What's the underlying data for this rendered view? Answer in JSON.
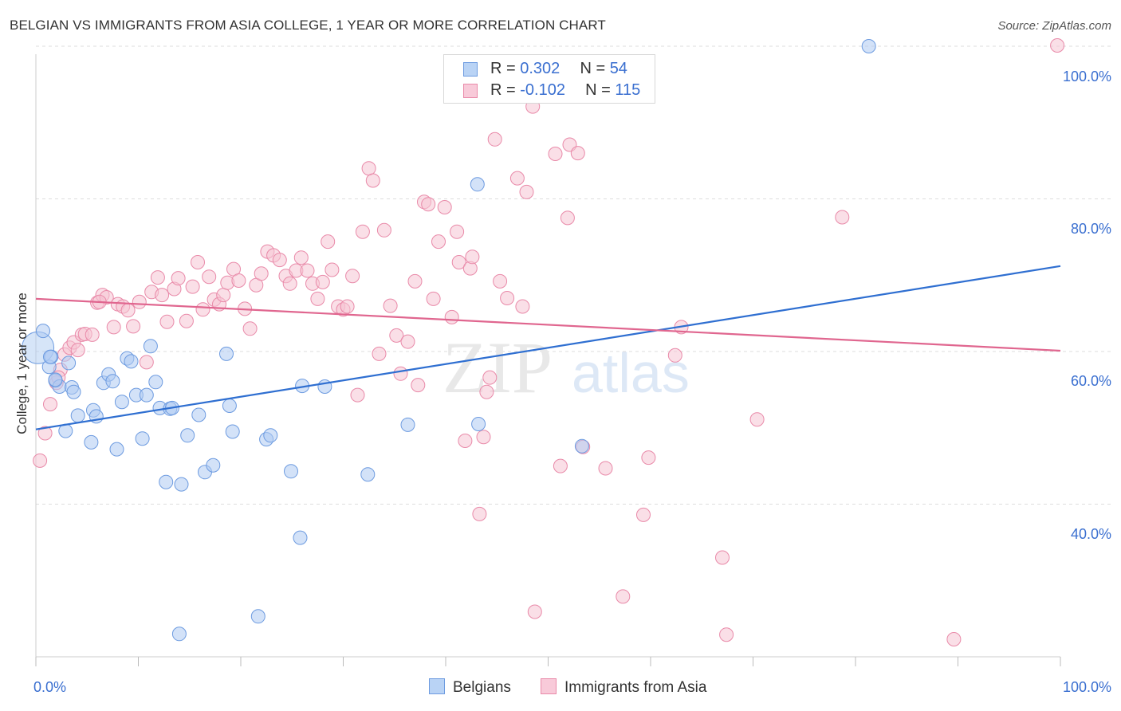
{
  "title": "BELGIAN VS IMMIGRANTS FROM ASIA COLLEGE, 1 YEAR OR MORE CORRELATION CHART",
  "source": "Source: ZipAtlas.com",
  "watermark": {
    "zip": "ZIP",
    "atlas": "atlas"
  },
  "legend_top": {
    "rows": [
      {
        "r_label": "R = ",
        "r_value": "0.302",
        "n_label": "N = ",
        "n_value": "54"
      },
      {
        "r_label": "R = ",
        "r_value": "-0.102",
        "n_label": "N = ",
        "n_value": "115"
      }
    ]
  },
  "legend_bottom": {
    "items": [
      "Belgians",
      "Immigrants from Asia"
    ]
  },
  "x_ticks": {
    "left": "0.0%",
    "right": "100.0%"
  },
  "y_ticks": [
    "100.0%",
    "80.0%",
    "60.0%",
    "40.0%"
  ],
  "colors": {
    "belgians_fill": "#aecbf2",
    "belgians_stroke": "#6d9be0",
    "belgians_line": "#2f6fd1",
    "asia_fill": "#f6c4d4",
    "asia_stroke": "#e98aa9",
    "asia_line": "#e0668f",
    "tick_label": "#3a6fd0",
    "grid": "#dddddd"
  },
  "chart_data": {
    "type": "scatter",
    "title": "BELGIAN VS IMMIGRANTS FROM ASIA COLLEGE, 1 YEAR OR MORE CORRELATION CHART",
    "xlabel": "",
    "ylabel": "College, 1 year or more",
    "xlim": [
      0,
      100
    ],
    "ylim": [
      22,
      102
    ],
    "grid": true,
    "legend_position": "bottom",
    "series": [
      {
        "name": "Belgians",
        "r": 0.302,
        "n": 54,
        "trend": {
          "x": [
            0,
            100
          ],
          "y": [
            49.8,
            71.2
          ]
        },
        "points": [
          [
            0.2,
            60.5
          ],
          [
            0.7,
            62.7
          ],
          [
            1.3,
            58.0
          ],
          [
            1.5,
            59.3
          ],
          [
            1.9,
            56.2
          ],
          [
            2.3,
            55.4
          ],
          [
            2.9,
            49.6
          ],
          [
            3.2,
            58.5
          ],
          [
            3.5,
            55.3
          ],
          [
            3.7,
            54.7
          ],
          [
            4.1,
            51.6
          ],
          [
            5.4,
            48.1
          ],
          [
            5.6,
            52.3
          ],
          [
            5.9,
            51.5
          ],
          [
            6.6,
            55.9
          ],
          [
            7.1,
            57.0
          ],
          [
            7.5,
            56.1
          ],
          [
            7.9,
            47.2
          ],
          [
            8.4,
            53.4
          ],
          [
            8.9,
            59.1
          ],
          [
            9.3,
            58.7
          ],
          [
            9.8,
            54.3
          ],
          [
            10.4,
            48.6
          ],
          [
            10.8,
            54.3
          ],
          [
            11.2,
            60.7
          ],
          [
            11.7,
            56.0
          ],
          [
            12.1,
            52.6
          ],
          [
            12.7,
            42.9
          ],
          [
            13.1,
            52.5
          ],
          [
            13.3,
            52.6
          ],
          [
            14.2,
            42.6
          ],
          [
            14.8,
            49.0
          ],
          [
            15.9,
            51.7
          ],
          [
            16.5,
            44.2
          ],
          [
            17.3,
            45.1
          ],
          [
            18.6,
            59.7
          ],
          [
            18.9,
            52.9
          ],
          [
            19.2,
            49.5
          ],
          [
            22.5,
            48.5
          ],
          [
            22.9,
            49.0
          ],
          [
            24.9,
            44.3
          ],
          [
            25.8,
            35.6
          ],
          [
            26.0,
            55.5
          ],
          [
            28.2,
            55.4
          ],
          [
            32.4,
            43.9
          ],
          [
            36.3,
            50.4
          ],
          [
            43.2,
            50.5
          ],
          [
            53.3,
            47.6
          ],
          [
            81.3,
            100.0
          ],
          [
            14.0,
            23.0
          ],
          [
            21.7,
            25.3
          ],
          [
            43.1,
            81.9
          ],
          [
            1.4,
            59.3
          ],
          [
            1.9,
            56.3
          ]
        ]
      },
      {
        "name": "Immigrants from Asia",
        "r": -0.102,
        "n": 115,
        "trend": {
          "x": [
            0,
            100
          ],
          "y": [
            66.9,
            60.1
          ]
        },
        "points": [
          [
            0.4,
            45.7
          ],
          [
            0.9,
            49.3
          ],
          [
            1.4,
            53.1
          ],
          [
            2.0,
            55.9
          ],
          [
            2.4,
            57.6
          ],
          [
            2.8,
            59.6
          ],
          [
            3.3,
            60.5
          ],
          [
            3.7,
            61.2
          ],
          [
            4.1,
            60.2
          ],
          [
            4.5,
            62.2
          ],
          [
            4.8,
            62.3
          ],
          [
            5.5,
            62.2
          ],
          [
            6.0,
            66.4
          ],
          [
            6.5,
            67.4
          ],
          [
            6.9,
            67.1
          ],
          [
            7.6,
            63.2
          ],
          [
            8.0,
            66.2
          ],
          [
            8.5,
            65.9
          ],
          [
            9.0,
            65.4
          ],
          [
            9.5,
            63.3
          ],
          [
            10.1,
            66.5
          ],
          [
            10.8,
            58.6
          ],
          [
            11.3,
            67.8
          ],
          [
            11.9,
            69.7
          ],
          [
            12.3,
            67.4
          ],
          [
            12.8,
            63.9
          ],
          [
            13.5,
            68.2
          ],
          [
            13.9,
            69.6
          ],
          [
            14.7,
            64.0
          ],
          [
            15.3,
            68.5
          ],
          [
            15.8,
            71.7
          ],
          [
            16.3,
            65.5
          ],
          [
            16.9,
            69.8
          ],
          [
            17.4,
            66.8
          ],
          [
            17.9,
            66.2
          ],
          [
            18.3,
            67.4
          ],
          [
            18.7,
            69.0
          ],
          [
            19.3,
            70.8
          ],
          [
            19.8,
            69.3
          ],
          [
            20.4,
            65.6
          ],
          [
            20.9,
            63.0
          ],
          [
            21.5,
            68.7
          ],
          [
            22.0,
            70.2
          ],
          [
            22.6,
            73.1
          ],
          [
            23.2,
            72.6
          ],
          [
            23.8,
            72.0
          ],
          [
            24.4,
            69.9
          ],
          [
            24.8,
            68.9
          ],
          [
            25.4,
            70.6
          ],
          [
            25.9,
            72.3
          ],
          [
            26.5,
            70.6
          ],
          [
            27.0,
            68.9
          ],
          [
            27.5,
            66.9
          ],
          [
            28.0,
            69.1
          ],
          [
            28.5,
            74.4
          ],
          [
            28.9,
            70.7
          ],
          [
            29.5,
            65.9
          ],
          [
            30.0,
            65.5
          ],
          [
            30.4,
            65.9
          ],
          [
            30.9,
            69.9
          ],
          [
            31.4,
            54.3
          ],
          [
            31.9,
            75.7
          ],
          [
            32.5,
            84.0
          ],
          [
            32.9,
            82.4
          ],
          [
            33.5,
            59.7
          ],
          [
            34.0,
            75.9
          ],
          [
            34.6,
            66.0
          ],
          [
            35.2,
            62.1
          ],
          [
            35.6,
            57.1
          ],
          [
            36.3,
            61.3
          ],
          [
            37.0,
            69.2
          ],
          [
            37.3,
            55.6
          ],
          [
            37.9,
            79.6
          ],
          [
            38.3,
            79.3
          ],
          [
            38.8,
            66.9
          ],
          [
            39.3,
            74.4
          ],
          [
            39.9,
            78.9
          ],
          [
            40.6,
            64.5
          ],
          [
            41.1,
            75.7
          ],
          [
            41.3,
            71.7
          ],
          [
            41.9,
            48.3
          ],
          [
            42.4,
            70.9
          ],
          [
            42.6,
            72.4
          ],
          [
            43.3,
            38.7
          ],
          [
            43.7,
            48.8
          ],
          [
            44.0,
            54.7
          ],
          [
            44.3,
            56.6
          ],
          [
            44.8,
            87.8
          ],
          [
            45.3,
            69.2
          ],
          [
            46.0,
            67.0
          ],
          [
            47.0,
            82.7
          ],
          [
            47.5,
            65.9
          ],
          [
            47.9,
            80.9
          ],
          [
            48.5,
            92.1
          ],
          [
            48.7,
            25.9
          ],
          [
            50.7,
            85.9
          ],
          [
            51.2,
            45.0
          ],
          [
            51.9,
            77.5
          ],
          [
            52.1,
            87.1
          ],
          [
            52.9,
            86.0
          ],
          [
            53.4,
            47.5
          ],
          [
            55.6,
            44.7
          ],
          [
            57.3,
            27.9
          ],
          [
            59.3,
            38.6
          ],
          [
            59.8,
            46.1
          ],
          [
            62.4,
            59.5
          ],
          [
            63.0,
            63.2
          ],
          [
            67.0,
            33.0
          ],
          [
            67.4,
            22.9
          ],
          [
            70.4,
            51.1
          ],
          [
            78.7,
            77.6
          ],
          [
            89.6,
            22.3
          ],
          [
            99.7,
            100.1
          ],
          [
            6.2,
            66.5
          ],
          [
            2.2,
            56.6
          ]
        ]
      }
    ]
  }
}
